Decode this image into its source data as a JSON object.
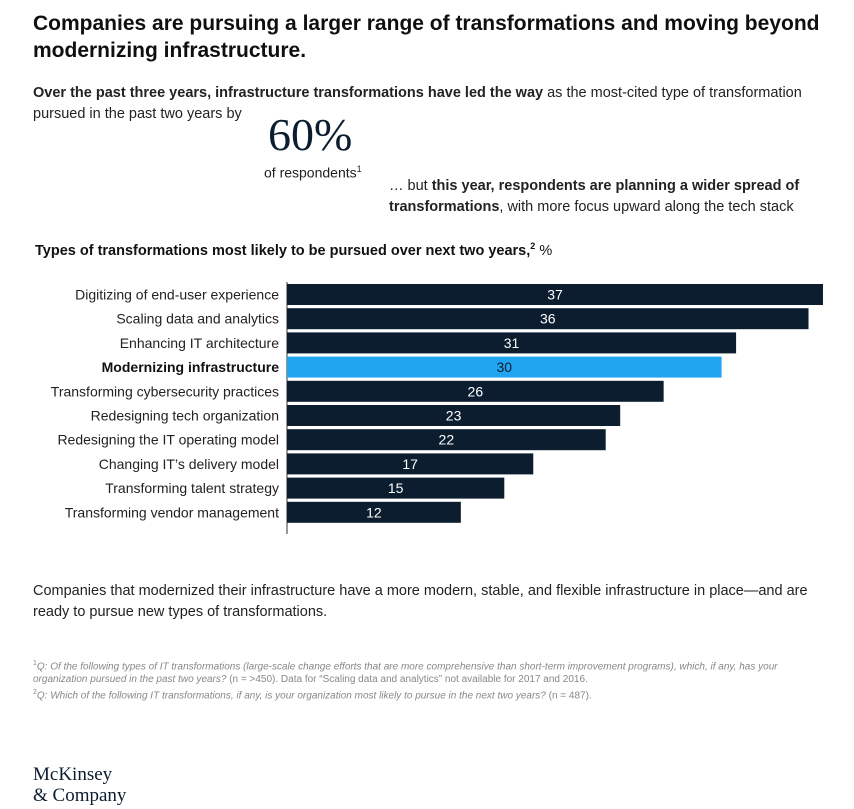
{
  "title": "Companies are pursuing a larger range of transformations and moving beyond modernizing infrastructure.",
  "intro": {
    "bold": "Over the past three years, infrastructure transformations have led the way",
    "rest": " as the most-cited type of transformation pursued in the past two years by"
  },
  "stat": {
    "value": "60%",
    "label": "of respondents",
    "footnote": "1"
  },
  "plan": {
    "prefix": "… but ",
    "bold": "this year, respondents are planning a wider spread of transformations",
    "rest": ", with more focus upward along the tech stack"
  },
  "colors": {
    "bar": "#0b1d2e",
    "highlight": "#22a5f0",
    "axis": "#333333"
  },
  "chart_data": {
    "type": "bar",
    "orientation": "horizontal",
    "title": "Types of transformations most likely to be pursued over next two years,",
    "title_footnote": "2",
    "unit": "%",
    "categories": [
      "Digitizing of end-user experience",
      "Scaling data and analytics",
      "Enhancing IT architecture",
      "Modernizing infrastructure",
      "Transforming cybersecurity practices",
      "Redesigning tech organization",
      "Redesigning the IT operating model",
      "Changing IT’s delivery model",
      "Transforming talent strategy",
      "Transforming vendor management"
    ],
    "values": [
      37,
      36,
      31,
      30,
      26,
      23,
      22,
      17,
      15,
      12
    ],
    "highlight": "Modernizing infrastructure",
    "xlim": [
      0,
      37
    ]
  },
  "summary": "Companies that modernized their infrastructure have a more modern, stable, and flexible infrastructure in place—and are ready to pursue new types of transformations.",
  "footnotes": {
    "f1_mark": "1",
    "f1_q": "Q: Of the following types of IT transformations (large-scale change efforts that are more comprehensive than short-term improvement programs), which, if any, has your organization pursued in the past two years?",
    "f1_rest": " (n = >450). Data for “Scaling data and analytics” not available for 2017 and 2016.",
    "f2_mark": "2",
    "f2_q": "Q: Which of the following IT transformations, if any, is your organization most likely to pursue in the next two years?",
    "f2_rest": " (n = 487)."
  },
  "logo": {
    "line1": "McKinsey",
    "line2": "& Company"
  }
}
